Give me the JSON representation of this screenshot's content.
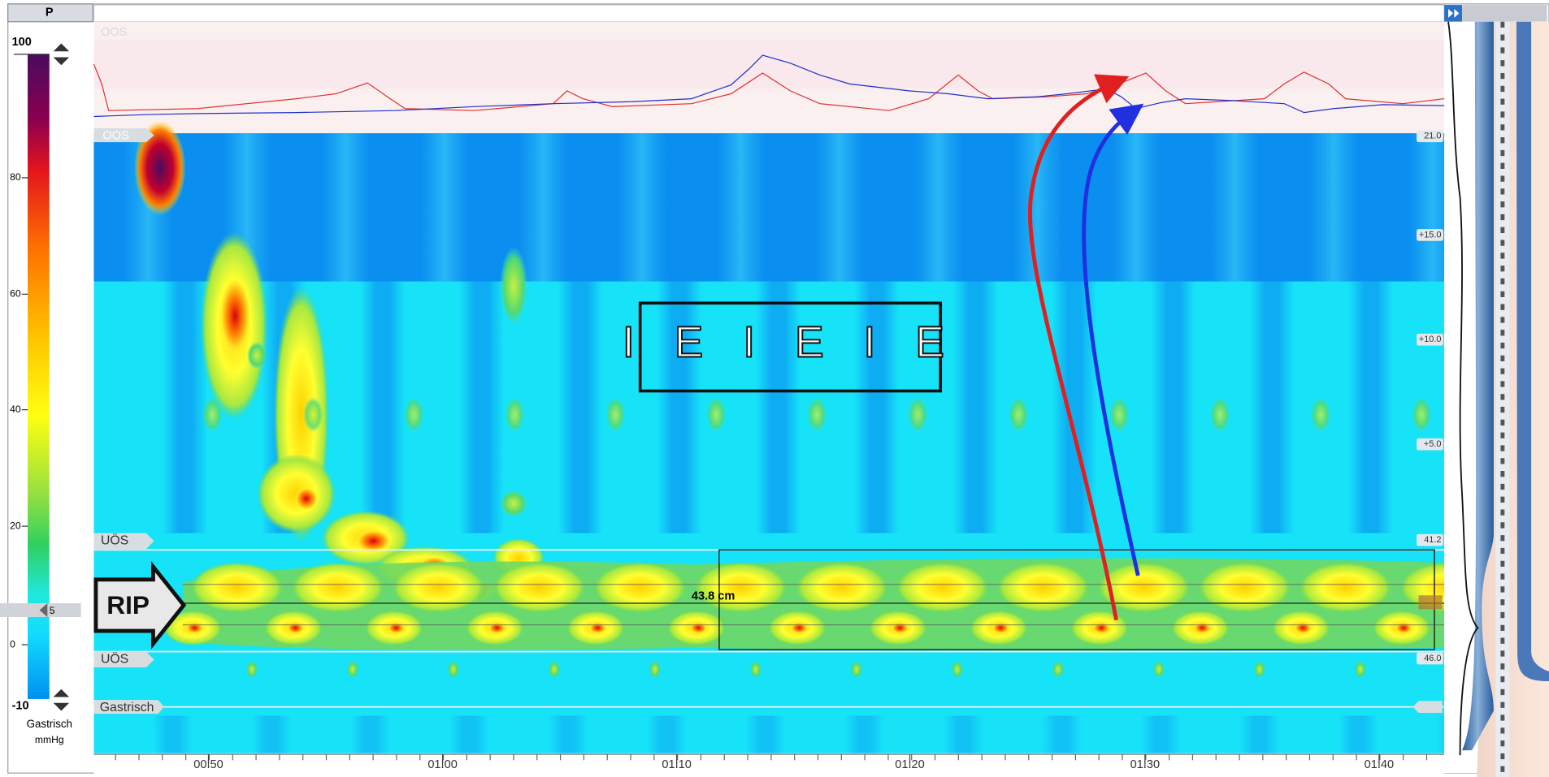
{
  "header": {
    "title": "P"
  },
  "color_scale": {
    "max": "100",
    "ticks": [
      "80",
      "60",
      "40",
      "20",
      "0"
    ],
    "min": "-10",
    "marker": "5",
    "name": "Gastrisch",
    "unit": "mmHg"
  },
  "regions": {
    "top_trace": "OOS",
    "upper_sphincter_top": "OOS",
    "uos_upper": "UÖS",
    "uos_lower": "UÖS",
    "gastric": "Gastrisch"
  },
  "depth_labels": [
    "21.0",
    "+15.0",
    "+10.0",
    "+5.0",
    "41.2",
    "46.0"
  ],
  "annotations": {
    "rip": "RIP",
    "distance": "43.8 cm",
    "breathing": "I E I E I E"
  },
  "time_axis": [
    "00:50",
    "01:00",
    "01:10",
    "01:20",
    "01:30",
    "01:40"
  ]
}
